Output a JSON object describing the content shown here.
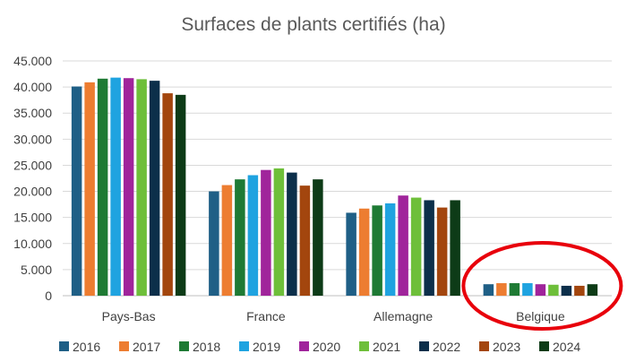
{
  "chart_data": {
    "type": "bar",
    "title": "Surfaces de plants certifiés (ha)",
    "xlabel": "",
    "ylabel": "",
    "categories": [
      "Pays-Bas",
      "France",
      "Allemagne",
      "Belgique"
    ],
    "ylim": [
      0,
      45000
    ],
    "yticks": [
      0,
      5000,
      10000,
      15000,
      20000,
      25000,
      30000,
      35000,
      40000,
      45000
    ],
    "ytick_labels": [
      "0",
      "5.000",
      "10.000",
      "15.000",
      "20.000",
      "25.000",
      "30.000",
      "35.000",
      "40.000",
      "45.000"
    ],
    "grid": true,
    "legend_position": "bottom",
    "series": [
      {
        "name": "2016",
        "color": "#1f5f86",
        "values": [
          40100,
          20000,
          15900,
          2200
        ]
      },
      {
        "name": "2017",
        "color": "#ed7d31",
        "values": [
          40900,
          21200,
          16700,
          2400
        ]
      },
      {
        "name": "2018",
        "color": "#1e7a34",
        "values": [
          41600,
          22300,
          17300,
          2400
        ]
      },
      {
        "name": "2019",
        "color": "#1fa3e0",
        "values": [
          41800,
          23100,
          17700,
          2400
        ]
      },
      {
        "name": "2020",
        "color": "#a0249b",
        "values": [
          41700,
          24100,
          19200,
          2200
        ]
      },
      {
        "name": "2021",
        "color": "#6ebf3a",
        "values": [
          41500,
          24400,
          18800,
          2100
        ]
      },
      {
        "name": "2022",
        "color": "#0c2f4a",
        "values": [
          41200,
          23600,
          18300,
          1900
        ]
      },
      {
        "name": "2023",
        "color": "#a3460e",
        "values": [
          38800,
          21100,
          16900,
          1900
        ]
      },
      {
        "name": "2024",
        "color": "#0d3b17",
        "values": [
          38500,
          22300,
          18300,
          2200
        ]
      }
    ],
    "annotation": {
      "type": "ellipse",
      "target_category": "Belgique",
      "color": "#e8000b"
    }
  }
}
